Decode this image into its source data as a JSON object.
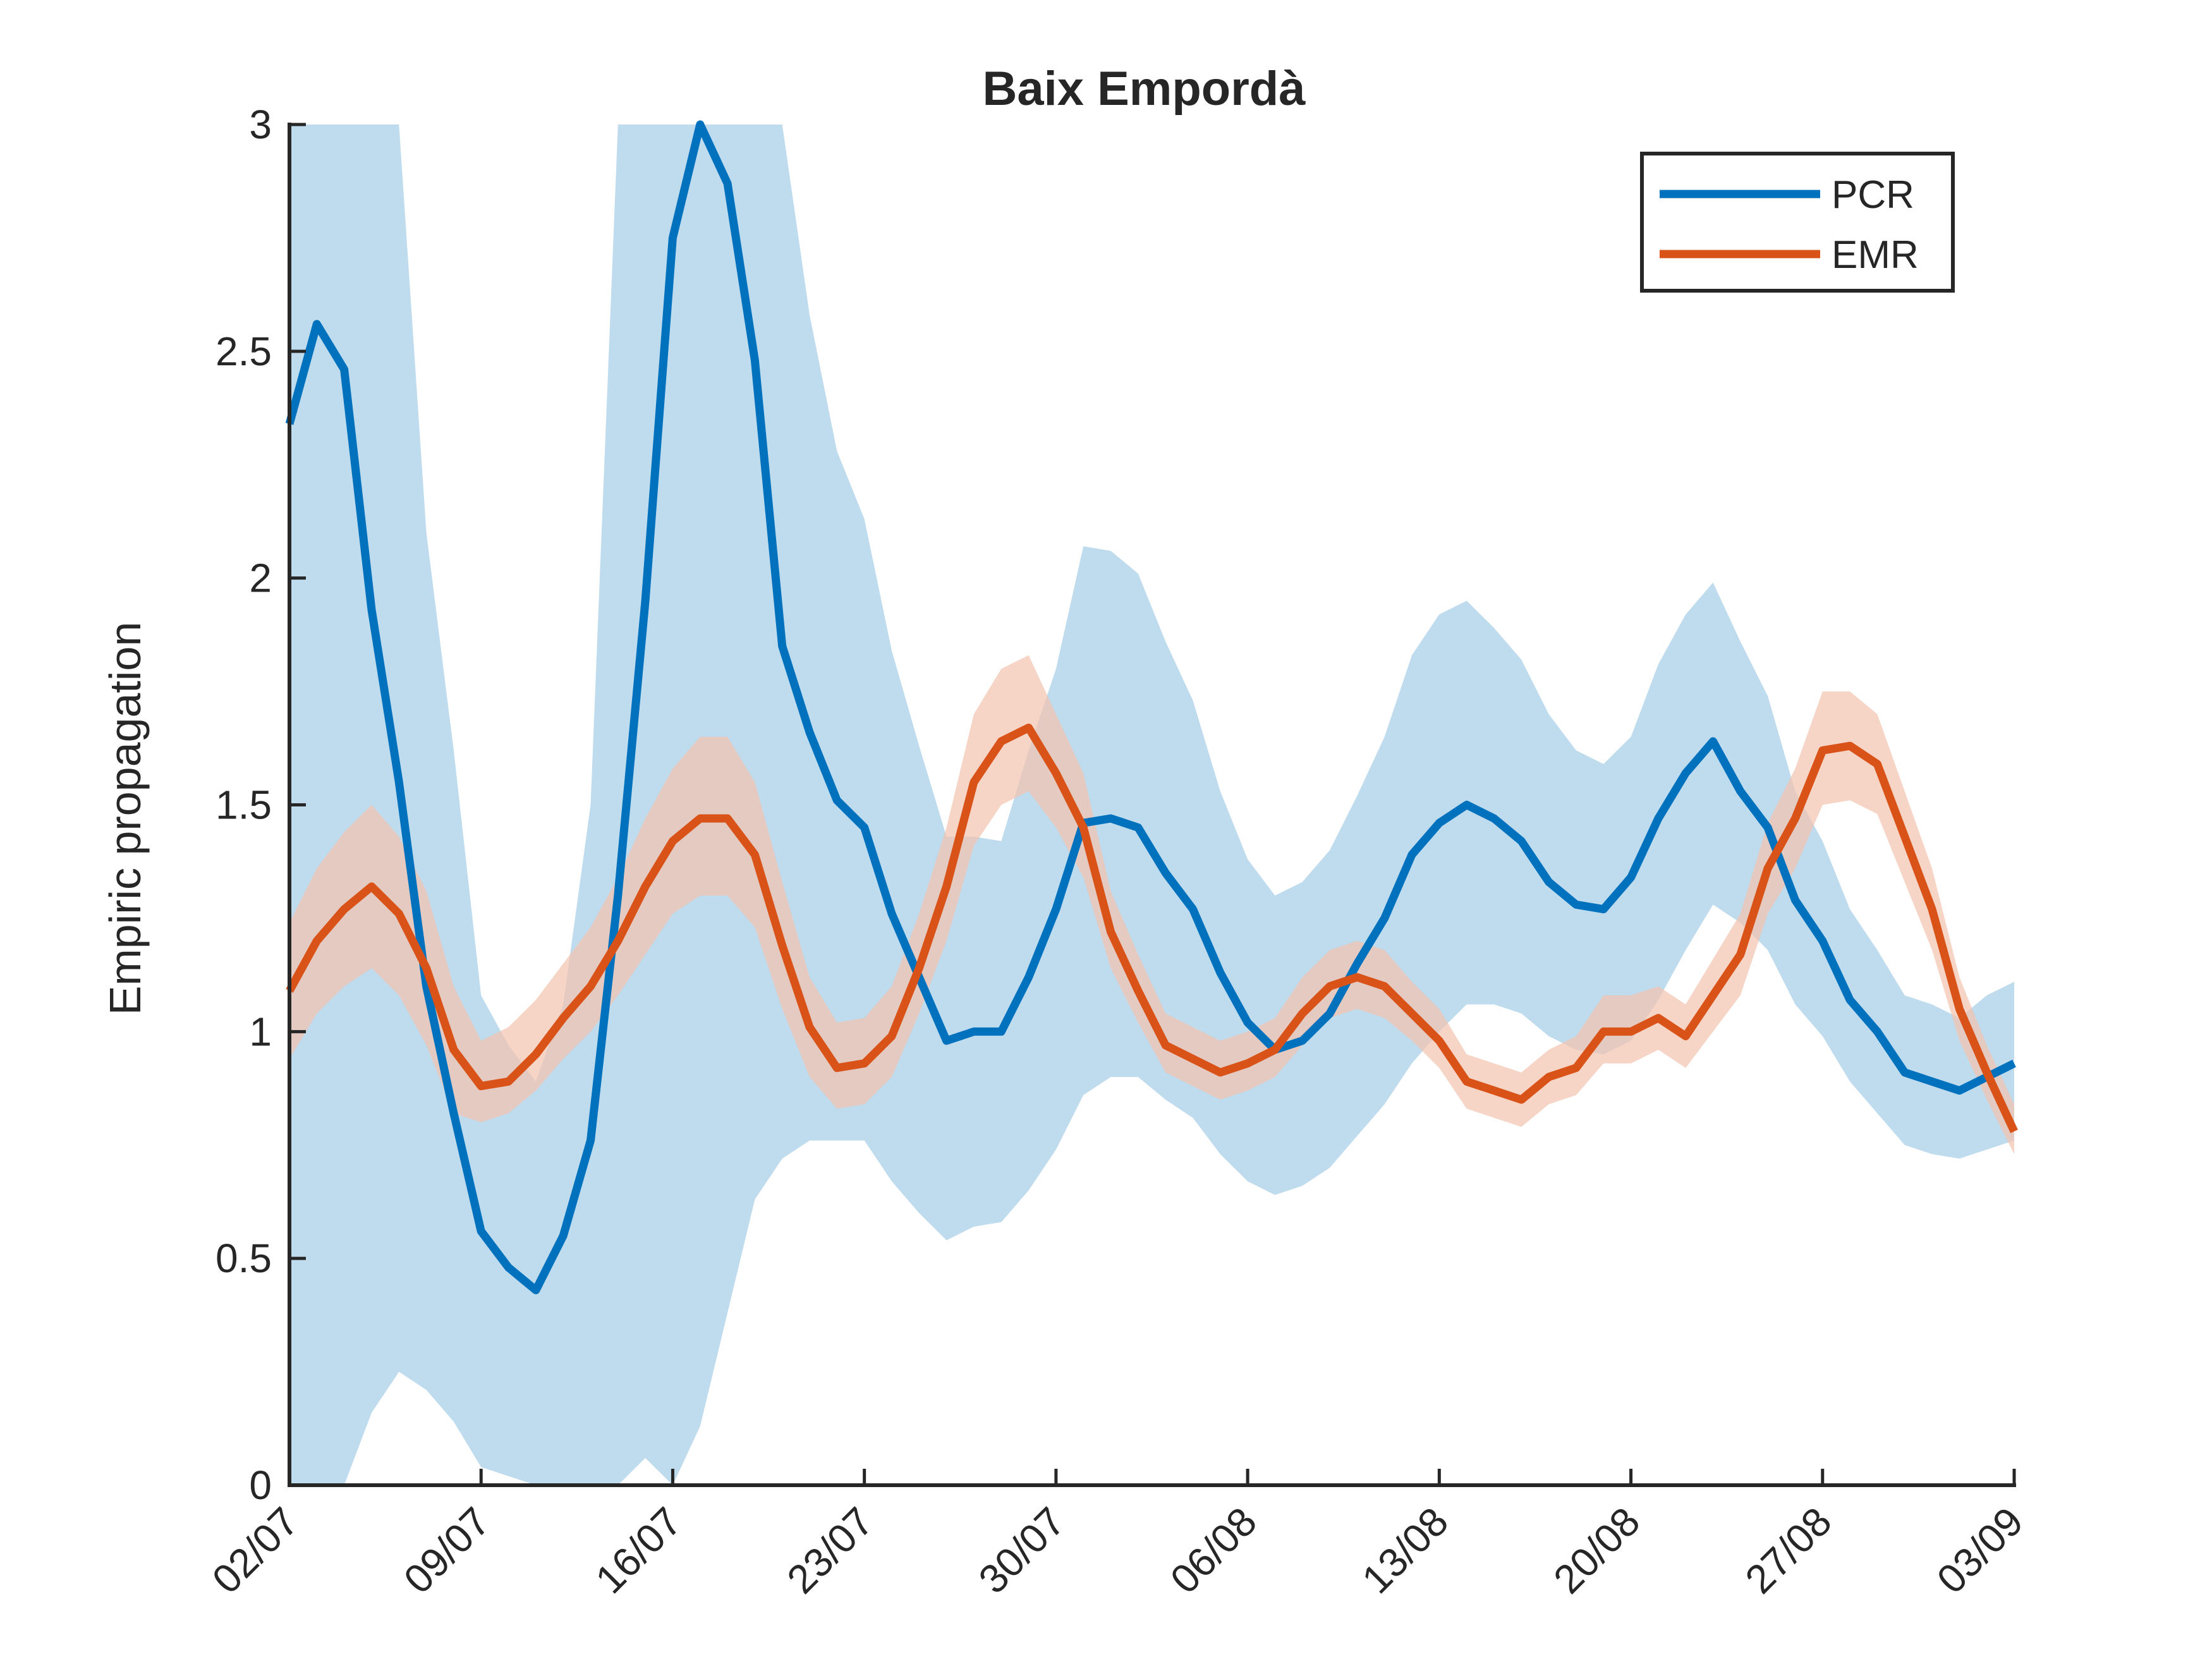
{
  "chart_data": {
    "type": "line",
    "title": "Baix Empordà",
    "xlabel": "",
    "ylabel": "Empiric propagation",
    "xlim": [
      "02/07",
      "03/09"
    ],
    "ylim": [
      0,
      3
    ],
    "x_tick_labels": [
      "02/07",
      "09/07",
      "16/07",
      "23/07",
      "30/07",
      "06/08",
      "13/08",
      "20/08",
      "27/08",
      "03/09"
    ],
    "y_tick_labels": [
      "0",
      "0.5",
      "1",
      "1.5",
      "2",
      "2.5",
      "3"
    ],
    "y_ticks": [
      0,
      0.5,
      1,
      1.5,
      2,
      2.5,
      3
    ],
    "grid": false,
    "legend_position": "top-right",
    "x": [
      "02/07",
      "03/07",
      "04/07",
      "05/07",
      "06/07",
      "07/07",
      "08/07",
      "09/07",
      "10/07",
      "11/07",
      "12/07",
      "13/07",
      "14/07",
      "15/07",
      "16/07",
      "17/07",
      "18/07",
      "19/07",
      "20/07",
      "21/07",
      "22/07",
      "23/07",
      "24/07",
      "25/07",
      "26/07",
      "27/07",
      "28/07",
      "29/07",
      "30/07",
      "31/07",
      "01/08",
      "02/08",
      "03/08",
      "04/08",
      "05/08",
      "06/08",
      "07/08",
      "08/08",
      "09/08",
      "10/08",
      "11/08",
      "12/08",
      "13/08",
      "14/08",
      "15/08",
      "16/08",
      "17/08",
      "18/08",
      "19/08",
      "20/08",
      "21/08",
      "22/08",
      "23/08",
      "24/08",
      "25/08",
      "26/08",
      "27/08",
      "28/08",
      "29/08",
      "30/08",
      "31/08",
      "01/09",
      "02/09",
      "03/09"
    ],
    "series": [
      {
        "name": "PCR",
        "color": "#0072BD",
        "band_color": "#A6CDE8",
        "values": [
          2.34,
          2.56,
          2.46,
          1.93,
          1.55,
          1.1,
          0.82,
          0.56,
          0.48,
          0.43,
          0.55,
          0.76,
          1.3,
          1.95,
          2.75,
          3.0,
          2.87,
          2.48,
          1.85,
          1.66,
          1.51,
          1.45,
          1.26,
          1.12,
          0.98,
          1.0,
          1.0,
          1.12,
          1.27,
          1.46,
          1.47,
          1.45,
          1.35,
          1.27,
          1.13,
          1.02,
          0.96,
          0.98,
          1.04,
          1.15,
          1.25,
          1.39,
          1.46,
          1.5,
          1.47,
          1.42,
          1.33,
          1.28,
          1.27,
          1.34,
          1.47,
          1.57,
          1.64,
          1.53,
          1.45,
          1.29,
          1.2,
          1.07,
          1.0,
          0.91,
          0.89,
          0.87,
          0.9,
          0.93
        ],
        "lower": [
          0.0,
          0.0,
          0.0,
          0.16,
          0.25,
          0.21,
          0.14,
          0.04,
          0.02,
          0.0,
          0.0,
          0.0,
          0.0,
          0.06,
          0.0,
          0.13,
          0.38,
          0.63,
          0.72,
          0.76,
          0.76,
          0.76,
          0.67,
          0.6,
          0.54,
          0.57,
          0.58,
          0.65,
          0.74,
          0.86,
          0.9,
          0.9,
          0.85,
          0.81,
          0.73,
          0.67,
          0.64,
          0.66,
          0.7,
          0.77,
          0.84,
          0.93,
          1.0,
          1.06,
          1.06,
          1.04,
          0.99,
          0.96,
          0.95,
          0.98,
          1.07,
          1.18,
          1.28,
          1.24,
          1.18,
          1.06,
          0.99,
          0.89,
          0.82,
          0.75,
          0.73,
          0.72,
          0.74,
          0.76
        ],
        "upper": [
          3.0,
          3.0,
          3.0,
          3.0,
          3.0,
          2.1,
          1.62,
          1.08,
          0.97,
          0.89,
          1.06,
          1.5,
          3.0,
          3.0,
          3.0,
          3.0,
          3.0,
          3.0,
          3.0,
          2.58,
          2.28,
          2.13,
          1.84,
          1.63,
          1.43,
          1.43,
          1.42,
          1.62,
          1.8,
          2.07,
          2.06,
          2.01,
          1.86,
          1.73,
          1.53,
          1.38,
          1.3,
          1.33,
          1.4,
          1.52,
          1.65,
          1.83,
          1.92,
          1.95,
          1.89,
          1.82,
          1.7,
          1.62,
          1.59,
          1.65,
          1.81,
          1.92,
          1.99,
          1.86,
          1.74,
          1.53,
          1.42,
          1.27,
          1.18,
          1.08,
          1.06,
          1.03,
          1.08,
          1.11
        ]
      },
      {
        "name": "EMR",
        "color": "#D95319",
        "band_color": "#F2C4B0",
        "values": [
          1.09,
          1.2,
          1.27,
          1.32,
          1.26,
          1.14,
          0.96,
          0.88,
          0.89,
          0.95,
          1.03,
          1.1,
          1.2,
          1.32,
          1.42,
          1.47,
          1.47,
          1.39,
          1.19,
          1.01,
          0.92,
          0.93,
          0.99,
          1.14,
          1.32,
          1.55,
          1.64,
          1.67,
          1.57,
          1.45,
          1.22,
          1.09,
          0.97,
          0.94,
          0.91,
          0.93,
          0.96,
          1.04,
          1.1,
          1.12,
          1.1,
          1.04,
          0.98,
          0.89,
          0.87,
          0.85,
          0.9,
          0.92,
          1.0,
          1.0,
          1.03,
          0.99,
          1.08,
          1.17,
          1.36,
          1.47,
          1.62,
          1.63,
          1.59,
          1.43,
          1.27,
          1.05,
          0.91,
          0.78
        ],
        "lower": [
          0.94,
          1.04,
          1.1,
          1.14,
          1.08,
          0.97,
          0.82,
          0.8,
          0.82,
          0.87,
          0.94,
          1.0,
          1.08,
          1.17,
          1.26,
          1.3,
          1.3,
          1.23,
          1.05,
          0.9,
          0.83,
          0.84,
          0.9,
          1.04,
          1.2,
          1.41,
          1.5,
          1.53,
          1.45,
          1.34,
          1.14,
          1.02,
          0.91,
          0.88,
          0.85,
          0.87,
          0.9,
          0.97,
          1.03,
          1.05,
          1.03,
          0.98,
          0.92,
          0.83,
          0.81,
          0.79,
          0.84,
          0.86,
          0.93,
          0.93,
          0.96,
          0.92,
          1.0,
          1.08,
          1.26,
          1.36,
          1.5,
          1.51,
          1.48,
          1.33,
          1.18,
          0.98,
          0.85,
          0.73
        ],
        "upper": [
          1.24,
          1.36,
          1.44,
          1.5,
          1.43,
          1.31,
          1.1,
          0.98,
          1.01,
          1.07,
          1.15,
          1.23,
          1.34,
          1.47,
          1.58,
          1.65,
          1.65,
          1.55,
          1.33,
          1.12,
          1.02,
          1.03,
          1.1,
          1.26,
          1.45,
          1.7,
          1.8,
          1.83,
          1.7,
          1.57,
          1.31,
          1.17,
          1.04,
          1.01,
          0.98,
          1.0,
          1.03,
          1.12,
          1.18,
          1.2,
          1.18,
          1.11,
          1.05,
          0.95,
          0.93,
          0.91,
          0.96,
          0.99,
          1.08,
          1.08,
          1.1,
          1.06,
          1.16,
          1.26,
          1.46,
          1.58,
          1.75,
          1.75,
          1.7,
          1.53,
          1.36,
          1.12,
          0.97,
          0.84
        ]
      }
    ]
  }
}
